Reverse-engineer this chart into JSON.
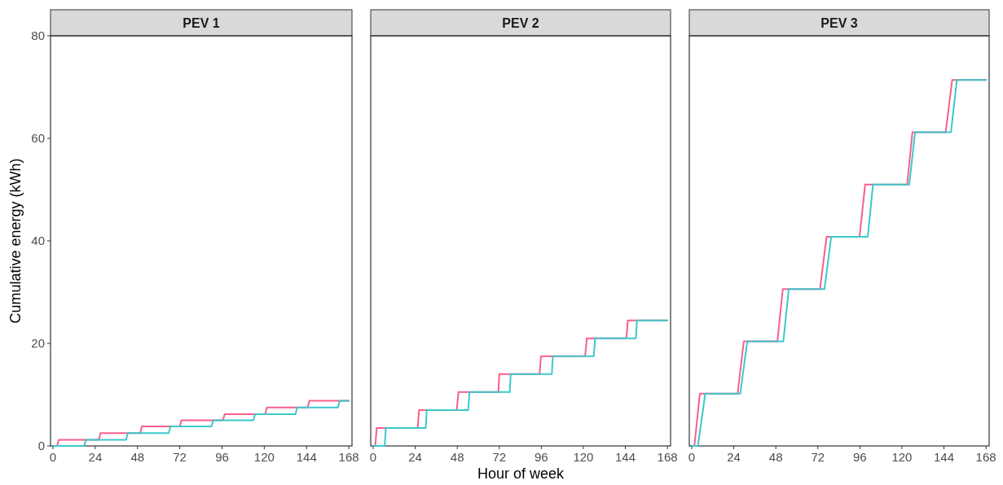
{
  "chart_data": [
    {
      "type": "line",
      "title": "PEV 1",
      "ylabel": "Cumulative energy (kWh)",
      "xlim": [
        -1.4,
        169.8
      ],
      "ylim": [
        0,
        80
      ],
      "xticks": [
        0,
        24,
        48,
        72,
        96,
        120,
        144,
        168
      ],
      "yticks": [
        0,
        20,
        40,
        60,
        80
      ],
      "series": [
        {
          "color": "#f75f8c",
          "x": [
            0,
            2.3,
            3.3,
            26,
            27,
            49.5,
            50.5,
            72,
            73,
            96.5,
            97.5,
            120.5,
            121.5,
            144.6,
            145.6,
            168
          ],
          "values": [
            0,
            0,
            1.2,
            1.2,
            2.5,
            2.5,
            3.8,
            3.8,
            5,
            5,
            6.2,
            6.2,
            7.5,
            7.5,
            8.8,
            8.8
          ]
        },
        {
          "color": "#3cc9cc",
          "x": [
            0,
            17.7,
            18.7,
            41.5,
            42.5,
            65.7,
            66.7,
            90,
            91,
            113.8,
            114.8,
            137.7,
            138.7,
            161.8,
            162.8,
            168
          ],
          "values": [
            0,
            0,
            1.2,
            1.2,
            2.5,
            2.5,
            3.8,
            3.8,
            5,
            5,
            6.2,
            6.2,
            7.5,
            7.5,
            8.8,
            8.8
          ]
        }
      ]
    },
    {
      "type": "line",
      "title": "PEV 2",
      "xlabel": "Hour of week",
      "xlim": [
        -1.4,
        169.8
      ],
      "ylim": [
        0,
        80
      ],
      "xticks": [
        0,
        24,
        48,
        72,
        96,
        120,
        144,
        168
      ],
      "tick_labels": "x",
      "series": [
        {
          "color": "#f75f8c",
          "x": [
            0,
            1.2,
            2,
            25.4,
            26.2,
            47.7,
            48.7,
            71.5,
            72,
            95,
            95.8,
            121,
            122,
            144.6,
            145.4,
            168
          ],
          "values": [
            0,
            0,
            3.5,
            3.5,
            7,
            7,
            10.5,
            10.5,
            14,
            14,
            17.5,
            17.5,
            21,
            21,
            24.5,
            24.5
          ]
        },
        {
          "color": "#3cc9cc",
          "x": [
            0,
            6.6,
            7.2,
            30,
            30.6,
            54.3,
            55,
            78,
            78.5,
            102,
            102.6,
            126,
            126.7,
            150,
            150.6,
            168
          ],
          "values": [
            0,
            0,
            3.5,
            3.5,
            7,
            7,
            10.5,
            10.5,
            14,
            14,
            17.5,
            17.5,
            21,
            21,
            24.5,
            24.5
          ]
        }
      ]
    },
    {
      "type": "line",
      "title": "PEV 3",
      "xlim": [
        -1.4,
        169.8
      ],
      "ylim": [
        0,
        80
      ],
      "xticks": [
        0,
        24,
        48,
        72,
        96,
        120,
        144,
        168
      ],
      "tick_labels": "x",
      "series": [
        {
          "color": "#f75f8c",
          "x": [
            0,
            1.5,
            4.6,
            26.2,
            29.7,
            48.9,
            52,
            73.2,
            77,
            95.8,
            99,
            123,
            126,
            145,
            148.7,
            168
          ],
          "values": [
            0,
            0,
            10.2,
            10.2,
            20.4,
            20.4,
            30.6,
            30.6,
            40.8,
            40.8,
            51,
            51,
            61.2,
            61.2,
            71.4,
            71.4
          ]
        },
        {
          "color": "#3cc9cc",
          "x": [
            0,
            3.5,
            7.7,
            27.7,
            31.7,
            52.3,
            55.4,
            75.8,
            79.6,
            100.5,
            103.5,
            124.2,
            127.5,
            148,
            151.4,
            168
          ],
          "values": [
            0,
            0,
            10.2,
            10.2,
            20.4,
            20.4,
            30.6,
            30.6,
            40.8,
            40.8,
            51,
            51,
            61.2,
            61.2,
            71.4,
            71.4
          ]
        }
      ]
    }
  ]
}
